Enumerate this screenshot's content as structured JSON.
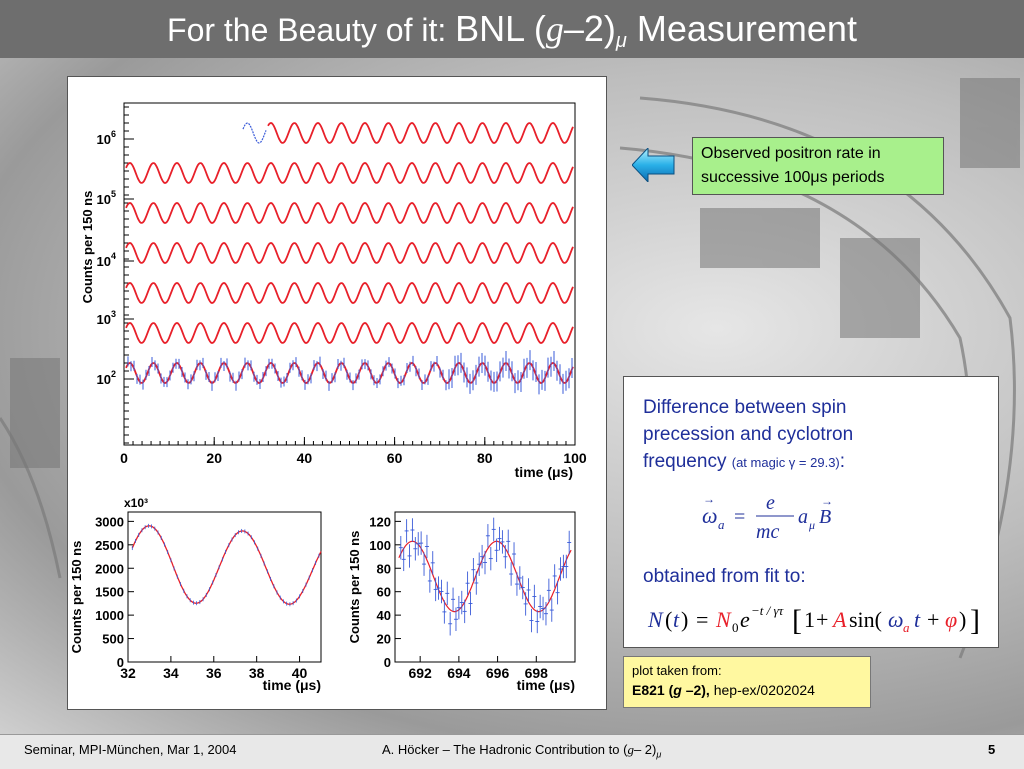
{
  "slide": {
    "title_prefix": "For the Beauty of it:",
    "title_bnl": "BNL (",
    "title_g": "g",
    "title_minus2": "–2)",
    "title_mu": "μ",
    "title_suffix": "Measurement",
    "slide_number": "5"
  },
  "callout": {
    "text_line1": "Observed positron rate in",
    "text_line2": "successive 100μs periods"
  },
  "formula_box": {
    "text_line1": "Difference between spin",
    "text_line2": "precession and cyclotron",
    "text_line3_main": "frequency",
    "text_line3_small": "(at magic γ = 29.3)",
    "text_line3_colon": ":",
    "eq1_omega": "ω",
    "eq1_a": "a",
    "eq1_equals": "=",
    "eq1_num": "e",
    "eq1_den": "mc",
    "eq1_amu": "a",
    "eq1_mu": "μ",
    "eq1_B": "B",
    "fit_label": "obtained from fit to:",
    "eq2": "N(t) = N₀e^(−t/γτ) [1 + A sin(ω_a t + φ)]"
  },
  "reference": {
    "line1": "plot taken from:",
    "exp": "E821 (",
    "g": "g",
    "rest": " –2),",
    "arxiv": "hep-ex/0202024"
  },
  "footer": {
    "left": "Seminar, MPI-München, Mar 1, 2004",
    "center": "A. Höcker – The Hadronic Contribution to (",
    "center_g": "g",
    "center_rest": "– 2)",
    "center_mu": "μ",
    "page": "5"
  },
  "chart_data": [
    {
      "type": "line",
      "title": "",
      "xlabel": "time (μs)",
      "ylabel": "Counts per 150 ns",
      "xlim": [
        0,
        100
      ],
      "x_ticks": [
        "0",
        "20",
        "40",
        "60",
        "80",
        "100"
      ],
      "y_ticks": [
        "10^2",
        "10^3",
        "10^4",
        "10^5",
        "10^6"
      ],
      "y_scale": "log",
      "series": [
        {
          "segment": 1,
          "values": []
        },
        {
          "segment": 2,
          "values": []
        },
        {
          "segment": 3,
          "values": []
        },
        {
          "segment": 4,
          "values": []
        },
        {
          "segment": 5,
          "values": []
        },
        {
          "segment": 6,
          "values": []
        },
        {
          "segment": 7,
          "values": []
        }
      ],
      "colors": {
        "fit": "#e8202a",
        "data": "#3a5bd8"
      }
    },
    {
      "type": "line",
      "title": "",
      "xlabel": "time (μs)",
      "ylabel": "Counts per 150 ns",
      "y_multiplier": "x10³",
      "xlim": [
        32,
        41
      ],
      "ylim": [
        0,
        3200
      ],
      "x_ticks": [
        "32",
        "34",
        "36",
        "38",
        "40"
      ],
      "y_ticks": [
        "0",
        "500",
        "1000",
        "1500",
        "2000",
        "2500",
        "3000"
      ],
      "x": [
        33,
        35,
        37,
        39
      ],
      "approx_peaks": [
        2950,
        2800
      ],
      "approx_troughs": [
        1300,
        1200
      ]
    },
    {
      "type": "scatter",
      "title": "",
      "xlabel": "time (μs)",
      "ylabel": "Counts per 150 ns",
      "xlim": [
        691,
        700
      ],
      "ylim": [
        0,
        130
      ],
      "x_ticks": [
        "692",
        "694",
        "696",
        "698"
      ],
      "y_ticks": [
        "0",
        "20",
        "40",
        "60",
        "80",
        "100",
        "120"
      ],
      "approx_peaks": [
        105,
        100
      ],
      "approx_troughs": [
        45,
        45
      ]
    }
  ]
}
